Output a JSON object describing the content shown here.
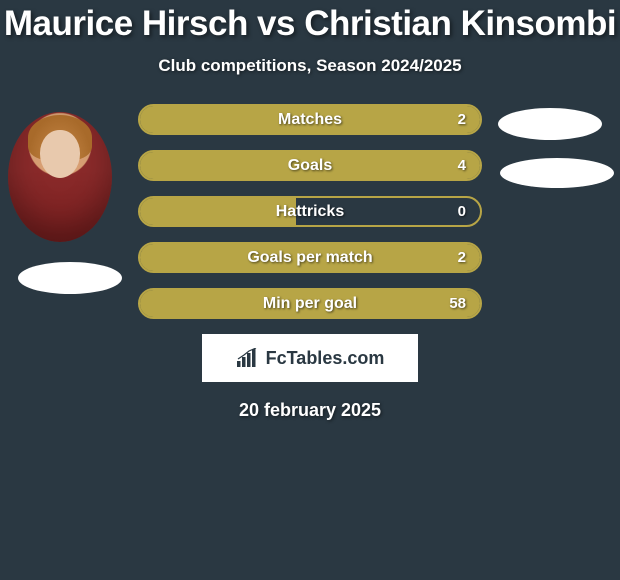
{
  "title": "Maurice Hirsch vs Christian Kinsombi",
  "subtitle": "Club competitions, Season 2024/2025",
  "date": "20 february 2025",
  "logo": {
    "text": "FcTables.com"
  },
  "colors": {
    "background": "#2a3842",
    "accent": "#b7a546",
    "pill": "#ffffff",
    "text": "#ffffff"
  },
  "stats": [
    {
      "label": "Matches",
      "value": "2",
      "fill_pct": 100
    },
    {
      "label": "Goals",
      "value": "4",
      "fill_pct": 100
    },
    {
      "label": "Hattricks",
      "value": "0",
      "fill_pct": 46
    },
    {
      "label": "Goals per match",
      "value": "2",
      "fill_pct": 100
    },
    {
      "label": "Min per goal",
      "value": "58",
      "fill_pct": 100
    }
  ]
}
